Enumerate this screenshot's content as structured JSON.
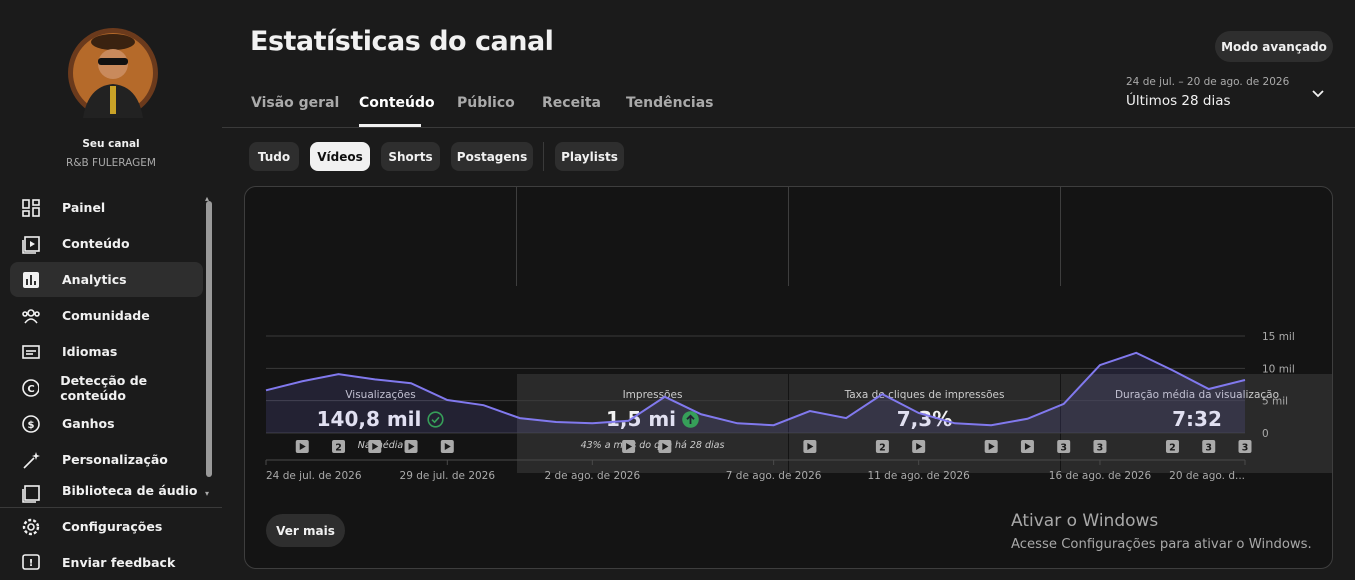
{
  "sidebar": {
    "channel_label": "Seu canal",
    "channel_name": "R&B FULERAGEM",
    "nav": [
      "Painel",
      "Conteúdo",
      "Analytics",
      "Comunidade",
      "Idiomas",
      "Detecção de conteúdo",
      "Ganhos",
      "Personalização",
      "Biblioteca de áudio"
    ],
    "footer_nav": [
      "Configurações",
      "Enviar feedback"
    ]
  },
  "header": {
    "title": "Estatísticas do canal",
    "advanced_button": "Modo avançado",
    "tabs": [
      "Visão geral",
      "Conteúdo",
      "Público",
      "Receita",
      "Tendências"
    ],
    "date_range": "24 de jul. – 20 de ago. de 2026",
    "period": "Últimos 28 dias"
  },
  "filters": [
    "Tudo",
    "Vídeos",
    "Shorts",
    "Postagens",
    "Playlists"
  ],
  "metrics": [
    {
      "label": "Visualizações",
      "value": "140,8 mil",
      "note": "Na média"
    },
    {
      "label": "Impressões",
      "value": "1,5 mi",
      "note": "43% a mais do que há 28 dias"
    },
    {
      "label": "Taxa de cliques de impressões",
      "value": "7,3%"
    },
    {
      "label": "Duração média da visualização",
      "value": "7:32"
    }
  ],
  "chart_data": {
    "type": "area",
    "categories": [
      "24 de jul. de 2026",
      null,
      null,
      null,
      null,
      "29 de jul. de 2026",
      null,
      null,
      null,
      "2 de ago. de 2026",
      null,
      null,
      null,
      null,
      "7 de ago. de 2026",
      null,
      null,
      null,
      "11 de ago. de 2026",
      null,
      null,
      null,
      null,
      "16 de ago. de 2026",
      null,
      null,
      null,
      "20 de ago. d..."
    ],
    "values": [
      6600,
      8000,
      9100,
      8300,
      7700,
      5100,
      4300,
      2300,
      1700,
      1500,
      1900,
      5600,
      2900,
      1500,
      1200,
      3400,
      2300,
      6000,
      3100,
      1500,
      1200,
      2200,
      4500,
      10500,
      12400,
      9700,
      6800,
      8200
    ],
    "uploads": [
      null,
      1,
      2,
      1,
      1,
      1,
      null,
      null,
      null,
      null,
      1,
      1,
      null,
      null,
      null,
      1,
      null,
      2,
      1,
      null,
      1,
      1,
      3,
      3,
      null,
      2,
      3,
      3
    ],
    "color": "#8179ee",
    "ylim": [
      0,
      15000
    ],
    "yticks": [
      0,
      {
        "value": 5000,
        "label": "5 mil"
      },
      {
        "value": 10000,
        "label": "10 mil"
      },
      {
        "value": 15000,
        "label": "15 mil"
      }
    ],
    "grid": true
  },
  "more_button": "Ver mais",
  "watermark": {
    "title": "Ativar o Windows",
    "text": "Acesse Configurações para ativar o Windows."
  }
}
